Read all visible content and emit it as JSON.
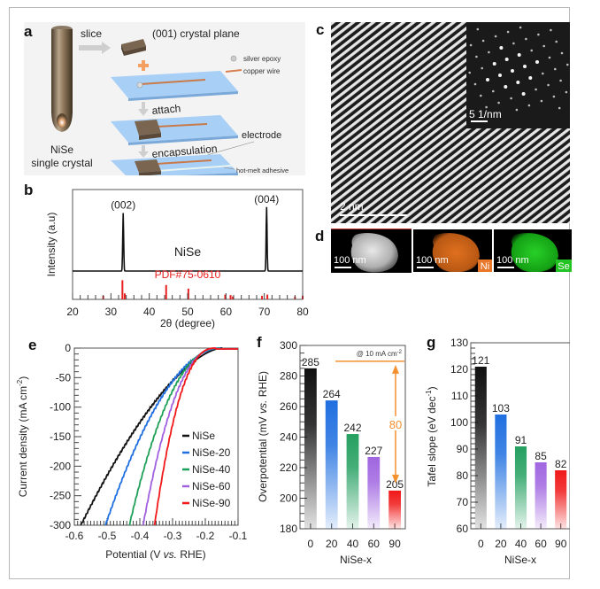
{
  "figure": {
    "panel_labels": [
      "a",
      "b",
      "c",
      "d",
      "e",
      "f",
      "g"
    ]
  },
  "panel_a": {
    "slice_label": "slice",
    "plane_label": "(001) crystal plane",
    "silver_epoxy_label": "silver epoxy",
    "copper_wire_label": "copper wire",
    "attach_label": "attach",
    "encapsulation_label": "encapsulation",
    "electrode_label": "electrode",
    "adhesive_label": "hot-melt adhesive",
    "crystal_label_1": "NiSe",
    "crystal_label_2": "single crystal"
  },
  "panel_c": {
    "scale_main": "2 nm",
    "scale_inset": "5 1/nm"
  },
  "panel_d": {
    "scale": "100 nm",
    "tiles": [
      {
        "tag": "",
        "color": "#ffffff"
      },
      {
        "tag": "Ni",
        "color": "#e8782a"
      },
      {
        "tag": "Se",
        "color": "#22c322"
      }
    ]
  },
  "chart_data": [
    {
      "id": "b",
      "type": "line",
      "title": "",
      "xlabel": "2θ (degree)",
      "ylabel": "Intensity (a.u)",
      "xlim": [
        20,
        80
      ],
      "xticks": [
        "20",
        "30",
        "40",
        "50",
        "60",
        "70",
        "80"
      ],
      "sample_label": "NiSe",
      "reference_label": "PDF#75-0610",
      "peaks": [
        {
          "x": 33.2,
          "label": "(002)",
          "height": 0.78
        },
        {
          "x": 70.6,
          "label": "(004)",
          "height": 0.86
        }
      ],
      "reference_lines": [
        {
          "x": 28.0,
          "h": 0.15
        },
        {
          "x": 33.0,
          "h": 0.8
        },
        {
          "x": 33.6,
          "h": 0.25
        },
        {
          "x": 44.4,
          "h": 0.6
        },
        {
          "x": 50.2,
          "h": 0.45
        },
        {
          "x": 59.8,
          "h": 0.2
        },
        {
          "x": 61.2,
          "h": 0.18
        },
        {
          "x": 61.8,
          "h": 0.12
        },
        {
          "x": 69.4,
          "h": 0.15
        },
        {
          "x": 70.8,
          "h": 0.2
        },
        {
          "x": 78.0,
          "h": 0.12
        },
        {
          "x": 80.0,
          "h": 0.15
        }
      ],
      "colors": {
        "pattern": "#111111",
        "reference": "#e82020"
      }
    },
    {
      "id": "e",
      "type": "line",
      "xlabel_pre": "Potential (V ",
      "xlabel_em": "vs.",
      "xlabel_post": " RHE)",
      "ylabel_pre": "Current density (mA cm",
      "ylabel_sup": "-2",
      "ylabel_post": ")",
      "xlim": [
        -0.6,
        -0.1
      ],
      "ylim": [
        -300,
        0
      ],
      "xticks": [
        "-0.6",
        "-0.5",
        "-0.4",
        "-0.3",
        "-0.2",
        "-0.1"
      ],
      "yticks": [
        "0",
        "-50",
        "-100",
        "-150",
        "-200",
        "-250",
        "-300"
      ],
      "legend_position": "center-right",
      "series": [
        {
          "name": "NiSe",
          "color": "#111111",
          "onset": -0.58,
          "x300": -0.58,
          "shape": 1.0
        },
        {
          "name": "NiSe-20",
          "color": "#1f6fe0",
          "onset": -0.5,
          "x300": -0.505,
          "shape": 0.75
        },
        {
          "name": "NiSe-40",
          "color": "#1fa058",
          "onset": -0.43,
          "x300": -0.432,
          "shape": 0.55
        },
        {
          "name": "NiSe-60",
          "color": "#a060e0",
          "onset": -0.39,
          "x300": -0.39,
          "shape": 0.45
        },
        {
          "name": "NiSe-90",
          "color": "#f01818",
          "onset": -0.355,
          "x300": -0.355,
          "shape": 0.35
        }
      ]
    },
    {
      "id": "f",
      "type": "bar",
      "xlabel": "NiSe-x",
      "ylabel_pre": "Overpotential (mV ",
      "ylabel_em": "vs.",
      "ylabel_post": " RHE)",
      "ylim": [
        180,
        300
      ],
      "yticks": [
        "180",
        "200",
        "220",
        "240",
        "260",
        "280",
        "300"
      ],
      "categories": [
        "0",
        "20",
        "40",
        "60",
        "90"
      ],
      "values": [
        285,
        264,
        242,
        227,
        205
      ],
      "value_labels": [
        "285",
        "264",
        "242",
        "227",
        "205"
      ],
      "colors": [
        "#111111",
        "#1f6fe0",
        "#25a060",
        "#a066e0",
        "#f01818"
      ],
      "annotation_pre": "@ 10 mA cm",
      "annotation_sup": "-2",
      "difference_label": "80",
      "difference_range": [
        285,
        205
      ],
      "annotation_color": "#f39030"
    },
    {
      "id": "g",
      "type": "bar",
      "xlabel": "NiSe-x",
      "ylabel_pre": "Tafel slope (eV dec",
      "ylabel_sup": "-1",
      "ylabel_post": ")",
      "ylim": [
        60,
        130
      ],
      "yticks": [
        "60",
        "70",
        "80",
        "90",
        "100",
        "110",
        "120",
        "130"
      ],
      "categories": [
        "0",
        "20",
        "40",
        "60",
        "90"
      ],
      "values": [
        121,
        103,
        91,
        85,
        82
      ],
      "value_labels": [
        "121",
        "103",
        "91",
        "85",
        "82"
      ],
      "colors": [
        "#111111",
        "#1f6fe0",
        "#25a060",
        "#a066e0",
        "#f01818"
      ]
    }
  ]
}
